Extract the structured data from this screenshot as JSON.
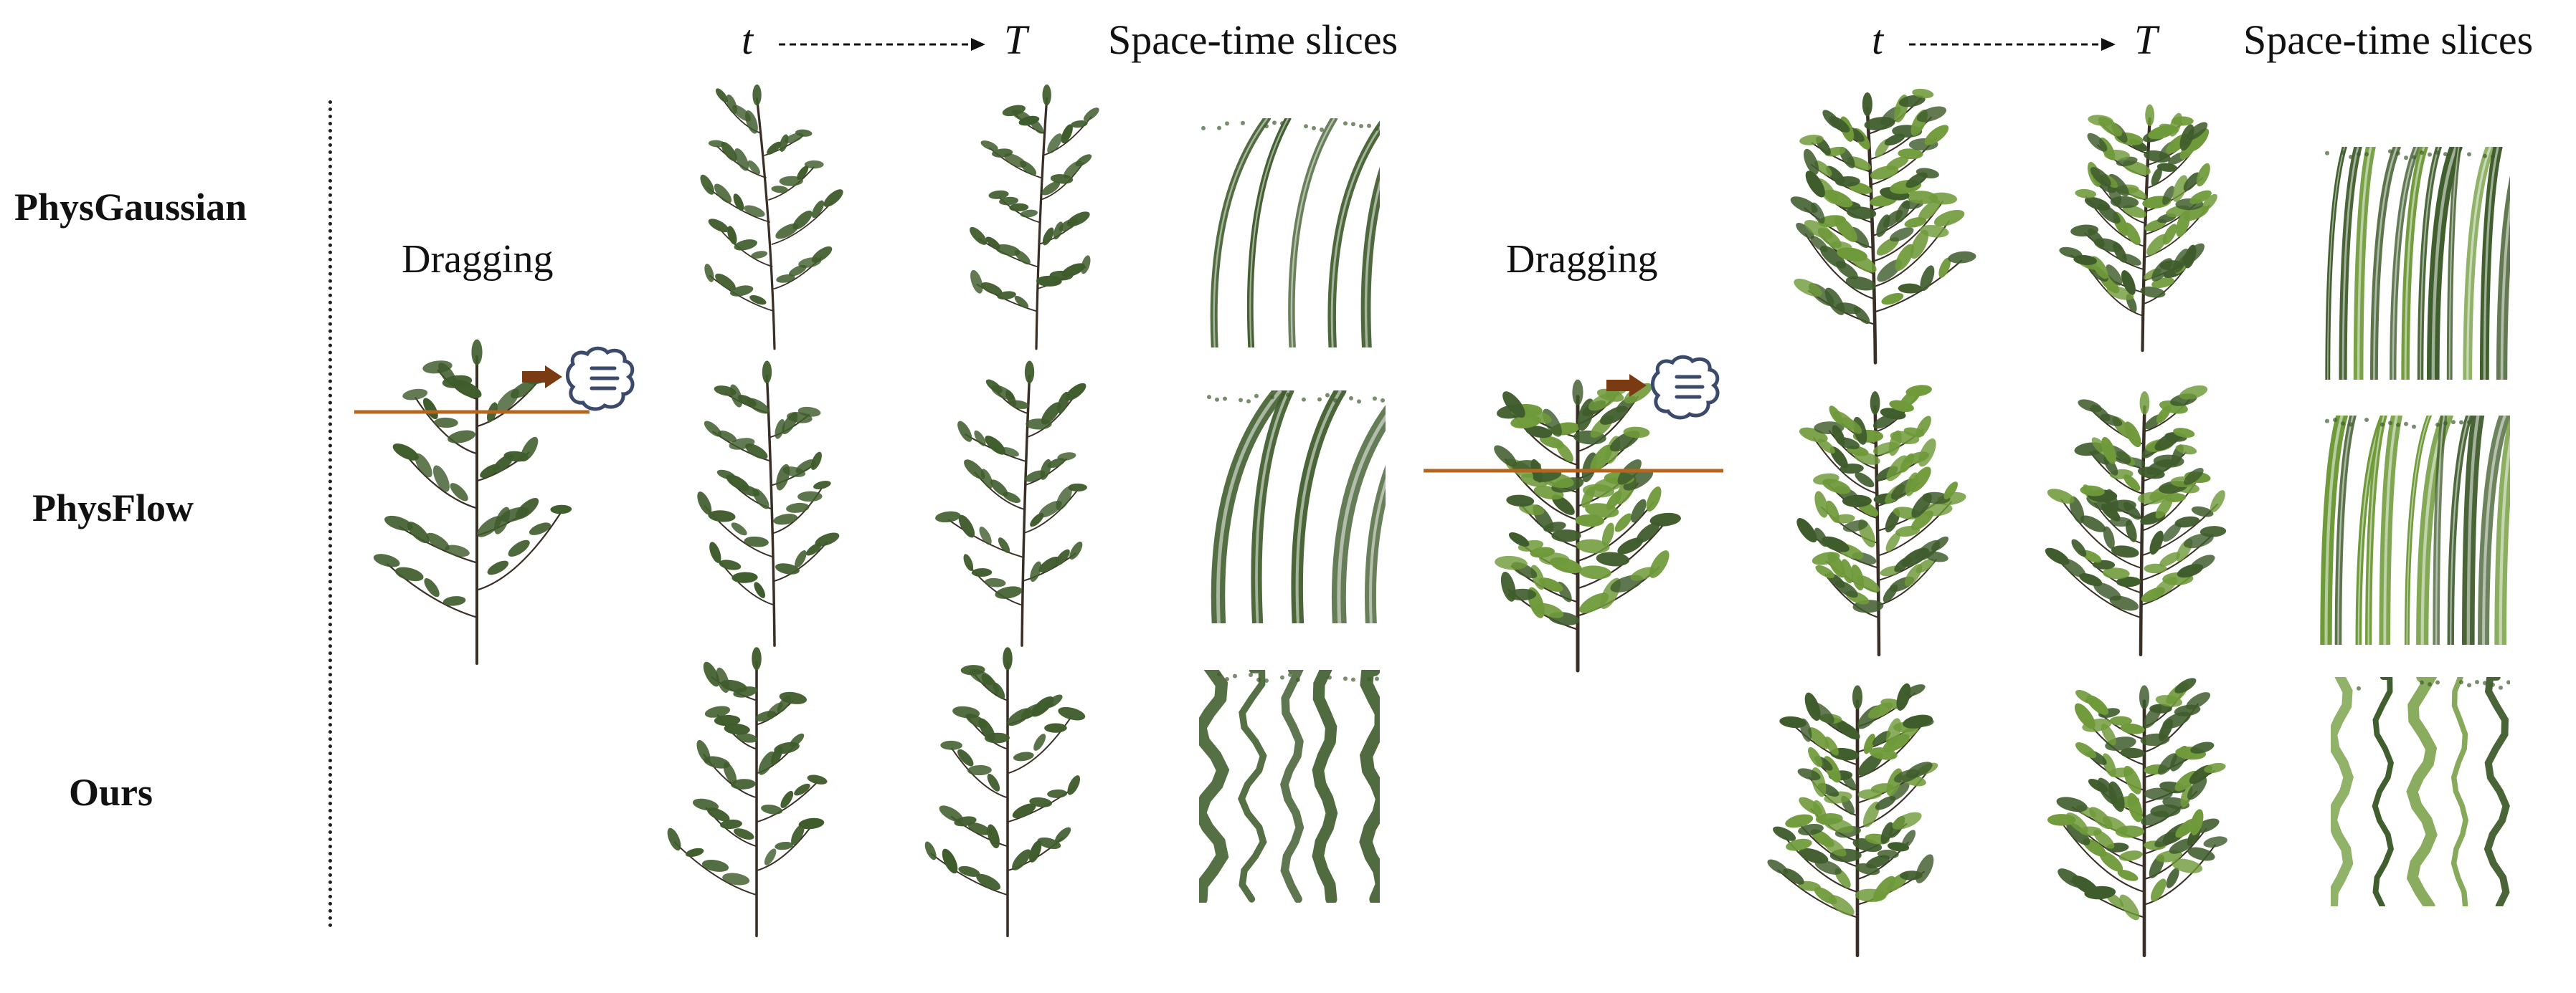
{
  "rows": [
    "PhysGaussian",
    "PhysFlow",
    "Ours"
  ],
  "panels": [
    {
      "id": "left",
      "drag_label": "Dragging",
      "t_label": "t",
      "T_label": "T",
      "slices_label": "Space-time slices"
    },
    {
      "id": "right",
      "drag_label": "Dragging",
      "t_label": "t",
      "T_label": "T",
      "slices_label": "Space-time slices"
    }
  ],
  "colors": {
    "leaf_dark": "#3f5c2c",
    "leaf_light": "#6f9a3a",
    "stem": "#3a2f26",
    "drag_line": "#b5651d",
    "arrow": "#7a3a12",
    "hand_stroke": "#3b4a6b"
  },
  "icons": [
    "hand-icon",
    "arrow-icon"
  ]
}
